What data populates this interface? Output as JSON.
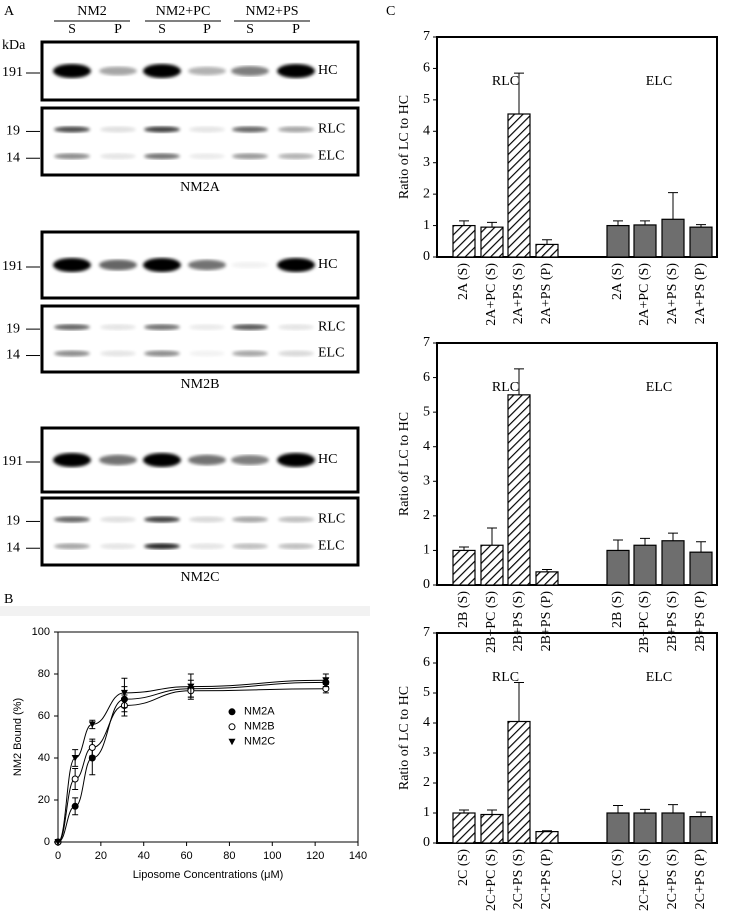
{
  "panel_labels": {
    "a": "A",
    "b": "B",
    "c": "C"
  },
  "blots": {
    "unit": "kDa",
    "groups": [
      "NM2",
      "NM2+PC",
      "NM2+PS"
    ],
    "lanes": [
      "S",
      "P",
      "S",
      "P",
      "S",
      "P"
    ],
    "panels": [
      {
        "name": "NM2A",
        "hc_marker": "191",
        "hc_label": "HC",
        "lc_markers": [
          "19",
          "14"
        ],
        "lc_labels": [
          "RLC",
          "ELC"
        ]
      },
      {
        "name": "NM2B",
        "hc_marker": "191",
        "hc_label": "HC",
        "lc_markers": [
          "19",
          "14"
        ],
        "lc_labels": [
          "RLC",
          "ELC"
        ]
      },
      {
        "name": "NM2C",
        "hc_marker": "191",
        "hc_label": "HC",
        "lc_markers": [
          "19",
          "14"
        ],
        "lc_labels": [
          "RLC",
          "ELC"
        ]
      }
    ]
  },
  "chart_data": [
    {
      "type": "scatter",
      "xlabel": "Liposome Concentrations (μM)",
      "ylabel": "NM2 Bound (%)",
      "x": [
        0,
        8,
        16,
        31,
        62,
        125
      ],
      "xlim": [
        0,
        140
      ],
      "xticks": [
        0,
        20,
        40,
        60,
        80,
        100,
        120,
        140
      ],
      "ylim": [
        0,
        100
      ],
      "yticks": [
        0,
        20,
        40,
        60,
        80,
        100
      ],
      "legend": "right",
      "series": [
        {
          "name": "NM2A",
          "marker": "filled-circle",
          "color": "#000000",
          "values": [
            0,
            17,
            40,
            68,
            73,
            76
          ],
          "errors": [
            0,
            4,
            8,
            6,
            4,
            2
          ]
        },
        {
          "name": "NM2B",
          "marker": "open-circle",
          "color": "#000000",
          "values": [
            0,
            30,
            45,
            65,
            72,
            73
          ],
          "errors": [
            0,
            5,
            4,
            5,
            3,
            2
          ]
        },
        {
          "name": "NM2C",
          "marker": "triangle-down",
          "color": "#000000",
          "values": [
            0,
            40,
            56,
            71,
            74,
            77
          ],
          "errors": [
            0,
            4,
            2,
            7,
            6,
            3
          ]
        }
      ]
    },
    {
      "type": "bar",
      "ylabel": "Ratio of  LC to HC",
      "ylim": [
        0,
        7
      ],
      "yticks": [
        0,
        1,
        2,
        3,
        4,
        5,
        6,
        7
      ],
      "groups": [
        {
          "name": "RLC",
          "fill": "hatch",
          "categories": [
            "2A (S)",
            "2A+PC (S)",
            "2A+PS (S)",
            "2A+PS (P)"
          ],
          "values": [
            1.0,
            0.95,
            4.55,
            0.4
          ],
          "errors": [
            0.15,
            0.15,
            1.3,
            0.15
          ]
        },
        {
          "name": "ELC",
          "fill": "solid",
          "color": "#6e6e6e",
          "categories": [
            "2A (S)",
            "2A+PC (S)",
            "2A+PS (S)",
            "2A+PS (P)"
          ],
          "values": [
            1.0,
            1.02,
            1.2,
            0.95
          ],
          "errors": [
            0.15,
            0.13,
            0.85,
            0.08
          ]
        }
      ]
    },
    {
      "type": "bar",
      "ylabel": "Ratio of  LC to HC",
      "ylim": [
        0,
        7
      ],
      "yticks": [
        0,
        1,
        2,
        3,
        4,
        5,
        6,
        7
      ],
      "groups": [
        {
          "name": "RLC",
          "fill": "hatch",
          "categories": [
            "2B (S)",
            "2B+PC (S)",
            "2B+PS (S)",
            "2B+PS (P)"
          ],
          "values": [
            1.0,
            1.15,
            5.5,
            0.38
          ],
          "errors": [
            0.1,
            0.5,
            0.75,
            0.07
          ]
        },
        {
          "name": "ELC",
          "fill": "solid",
          "color": "#6e6e6e",
          "categories": [
            "2B (S)",
            "2B+PC (S)",
            "2B+PS (S)",
            "2B+PS (P)"
          ],
          "values": [
            1.0,
            1.15,
            1.28,
            0.95
          ],
          "errors": [
            0.3,
            0.2,
            0.22,
            0.3
          ]
        }
      ]
    },
    {
      "type": "bar",
      "ylabel": "Ratio of  LC to HC",
      "ylim": [
        0,
        7
      ],
      "yticks": [
        0,
        1,
        2,
        3,
        4,
        5,
        6,
        7
      ],
      "groups": [
        {
          "name": "RLC",
          "fill": "hatch",
          "categories": [
            "2C (S)",
            "2C+PC (S)",
            "2C+PS (S)",
            "2C+PS (P)"
          ],
          "values": [
            1.0,
            0.95,
            4.05,
            0.38
          ],
          "errors": [
            0.1,
            0.15,
            1.3,
            0.03
          ]
        },
        {
          "name": "ELC",
          "fill": "solid",
          "color": "#6e6e6e",
          "categories": [
            "2C (S)",
            "2C+PC (S)",
            "2C+PS (S)",
            "2C+PS (P)"
          ],
          "values": [
            1.0,
            1.0,
            1.0,
            0.88
          ],
          "errors": [
            0.25,
            0.12,
            0.28,
            0.15
          ]
        }
      ]
    }
  ]
}
